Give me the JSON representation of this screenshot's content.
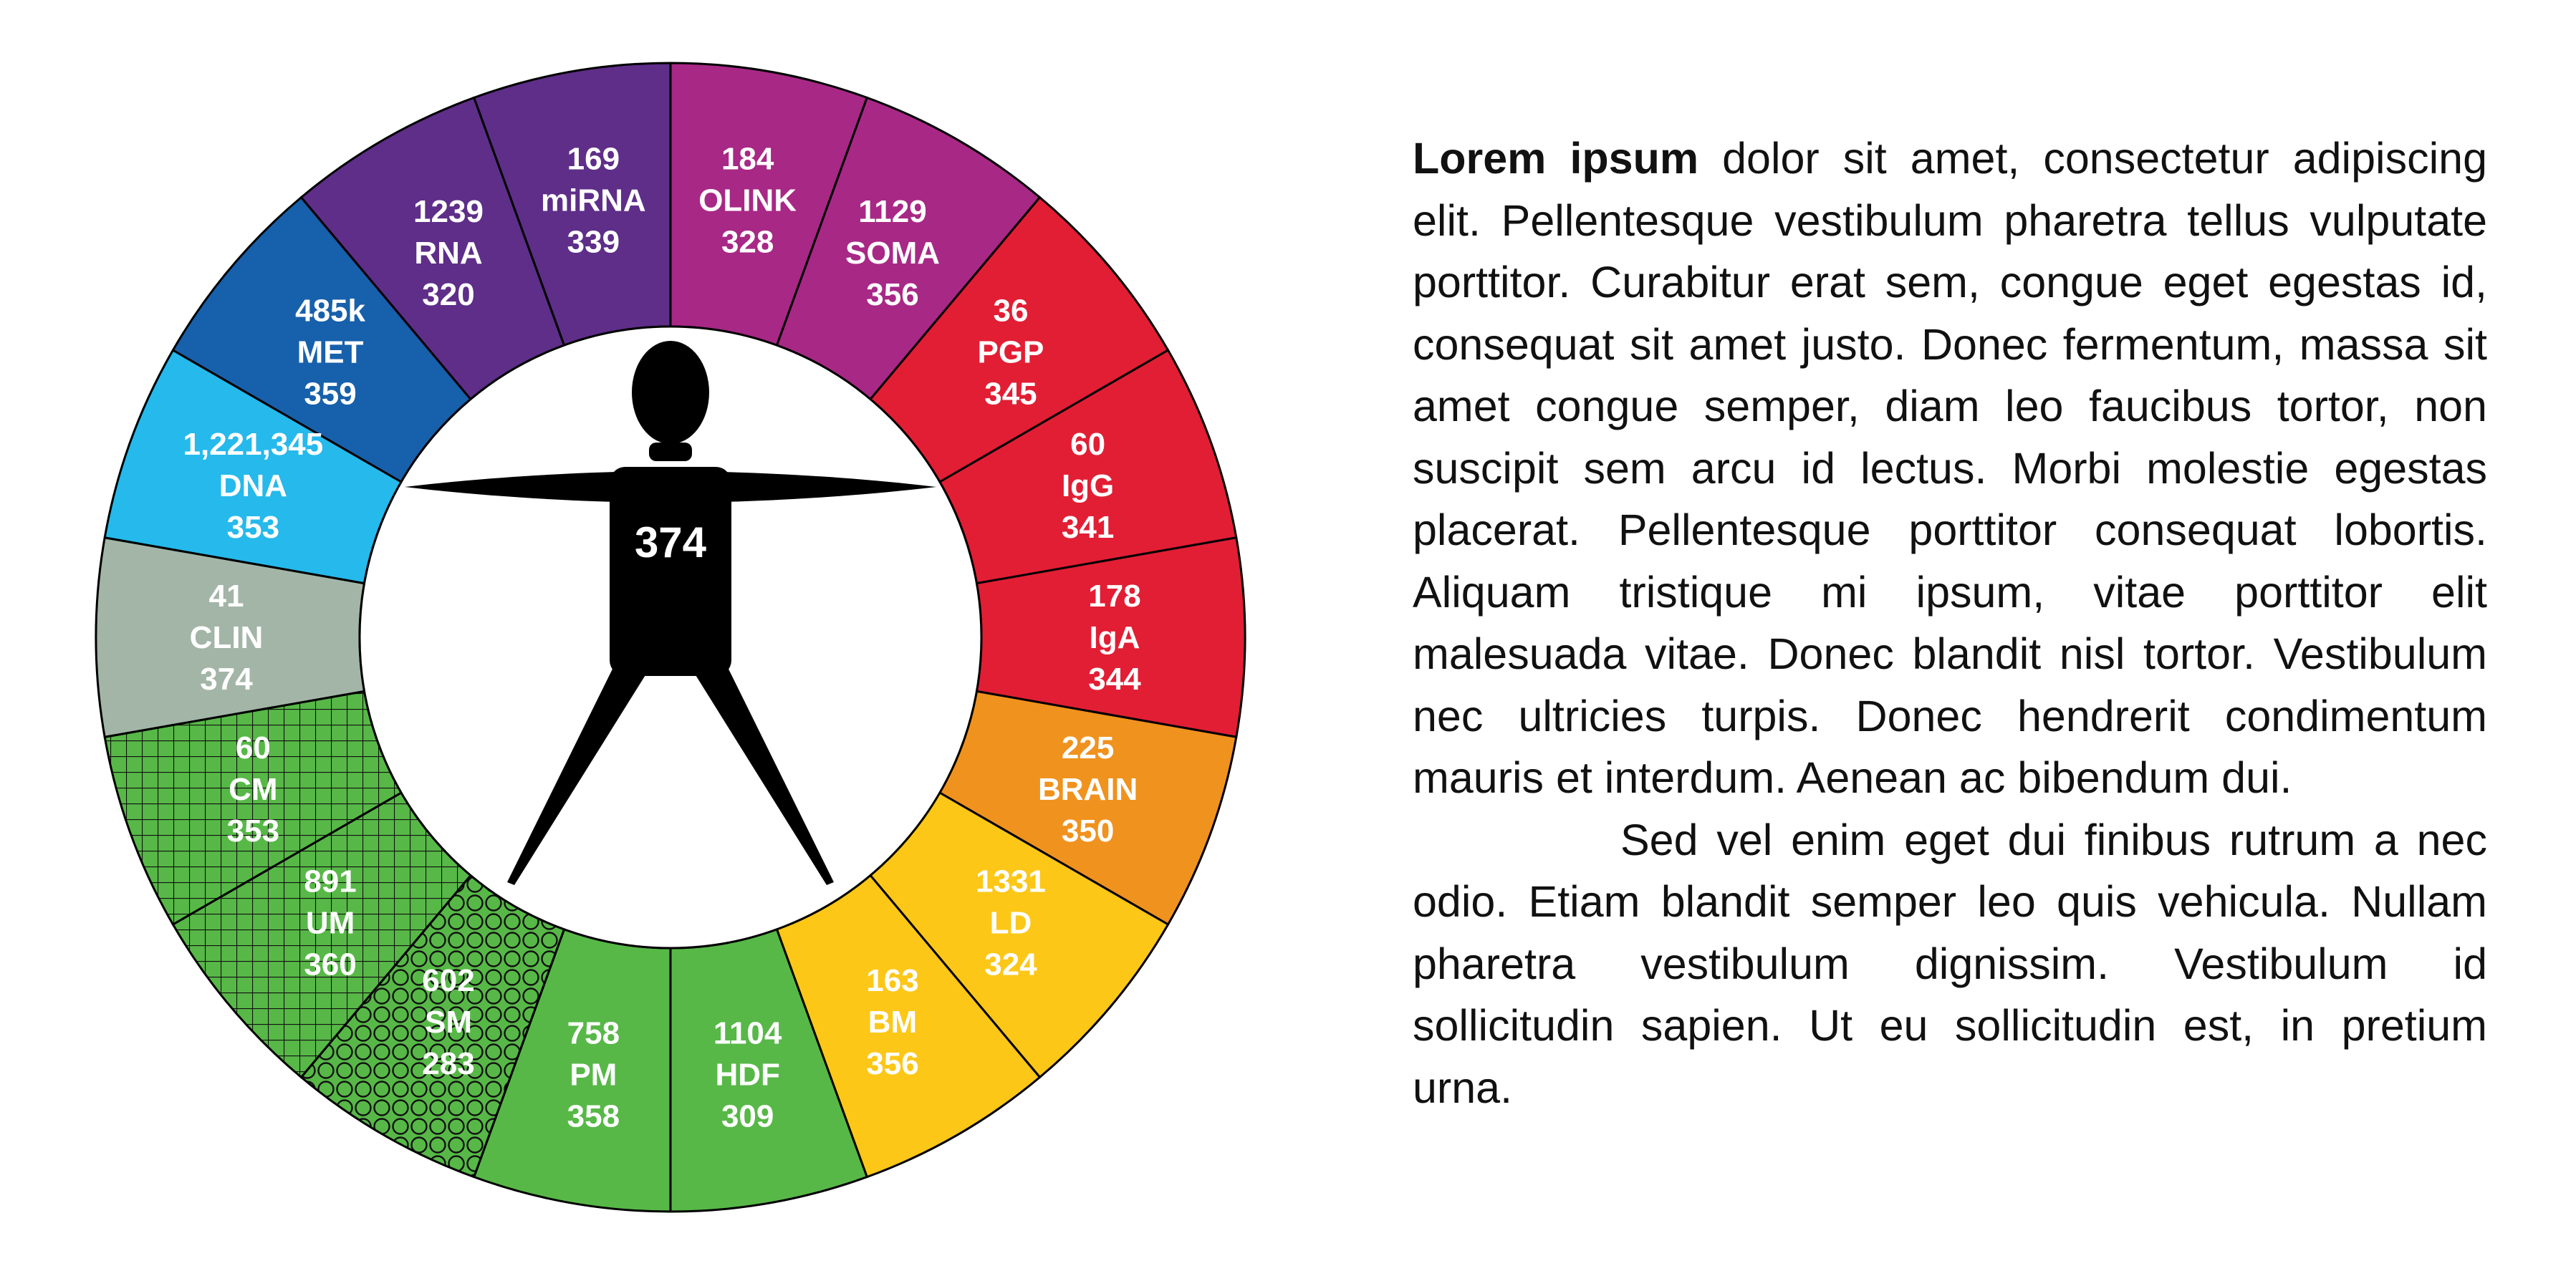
{
  "diagram": {
    "center_value": "374",
    "ring": [
      {
        "top": "184",
        "name": "OLINK",
        "bottom": "328",
        "color": "#a82886",
        "pattern": "solid"
      },
      {
        "top": "1129",
        "name": "SOMA",
        "bottom": "356",
        "color": "#a82886",
        "pattern": "solid"
      },
      {
        "top": "36",
        "name": "PGP",
        "bottom": "345",
        "color": "#e21e34",
        "pattern": "solid"
      },
      {
        "top": "60",
        "name": "IgG",
        "bottom": "341",
        "color": "#e21e34",
        "pattern": "solid"
      },
      {
        "top": "178",
        "name": "IgA",
        "bottom": "344",
        "color": "#e21e34",
        "pattern": "solid"
      },
      {
        "top": "225",
        "name": "BRAIN",
        "bottom": "350",
        "color": "#f0921e",
        "pattern": "solid"
      },
      {
        "top": "1331",
        "name": "LD",
        "bottom": "324",
        "color": "#fcc717",
        "pattern": "solid"
      },
      {
        "top": "163",
        "name": "BM",
        "bottom": "356",
        "color": "#fcc717",
        "pattern": "solid"
      },
      {
        "top": "1104",
        "name": "HDF",
        "bottom": "309",
        "color": "#57b847",
        "pattern": "solid"
      },
      {
        "top": "758",
        "name": "PM",
        "bottom": "358",
        "color": "#57b847",
        "pattern": "solid"
      },
      {
        "top": "602",
        "name": "SM",
        "bottom": "283",
        "color": "#57b847",
        "pattern": "circles"
      },
      {
        "top": "891",
        "name": "UM",
        "bottom": "360",
        "color": "#57b847",
        "pattern": "grid"
      },
      {
        "top": "60",
        "name": "CM",
        "bottom": "353",
        "color": "#57b847",
        "pattern": "grid"
      },
      {
        "top": "41",
        "name": "CLIN",
        "bottom": "374",
        "color": "#a3b5a7",
        "pattern": "solid"
      },
      {
        "top": "1,221,345",
        "name": "DNA",
        "bottom": "353",
        "color": "#25b9ec",
        "pattern": "solid"
      },
      {
        "top": "485k",
        "name": "MET",
        "bottom": "359",
        "color": "#1760ab",
        "pattern": "solid"
      },
      {
        "top": "1239",
        "name": "RNA",
        "bottom": "320",
        "color": "#5e2e89",
        "pattern": "solid"
      },
      {
        "top": "169",
        "name": "miRNA",
        "bottom": "339",
        "color": "#5e2e89",
        "pattern": "solid"
      }
    ]
  },
  "text": {
    "lead": "Lorem ipsum",
    "para1": " dolor sit amet, consectetur adipiscing elit. Pellentesque vestibulum pharetra tellus vulputate porttitor. Curabitur erat sem, congue eget egestas id, consequat sit amet justo. Donec fermentum, massa sit amet congue semper, diam leo faucibus tortor, non suscipit sem arcu id lectus. Morbi molestie egestas placerat. Pellentesque porttitor consequat lobortis. Aliquam tristique mi ipsum, vitae porttitor elit malesuada vitae. Donec blandit nisl tortor. Vestibulum nec ultricies turpis. Donec hendrerit condimentum mauris et interdum. Aenean ac bibendum dui.",
    "para2": "Sed vel enim eget dui finibus rutrum a nec odio. Etiam blandit semper leo quis vehicula. Nullam pharetra vestibulum dignissim. Vestibulum id sollicitudin sapien. Ut eu sollicitudin est, in pretium urna."
  }
}
